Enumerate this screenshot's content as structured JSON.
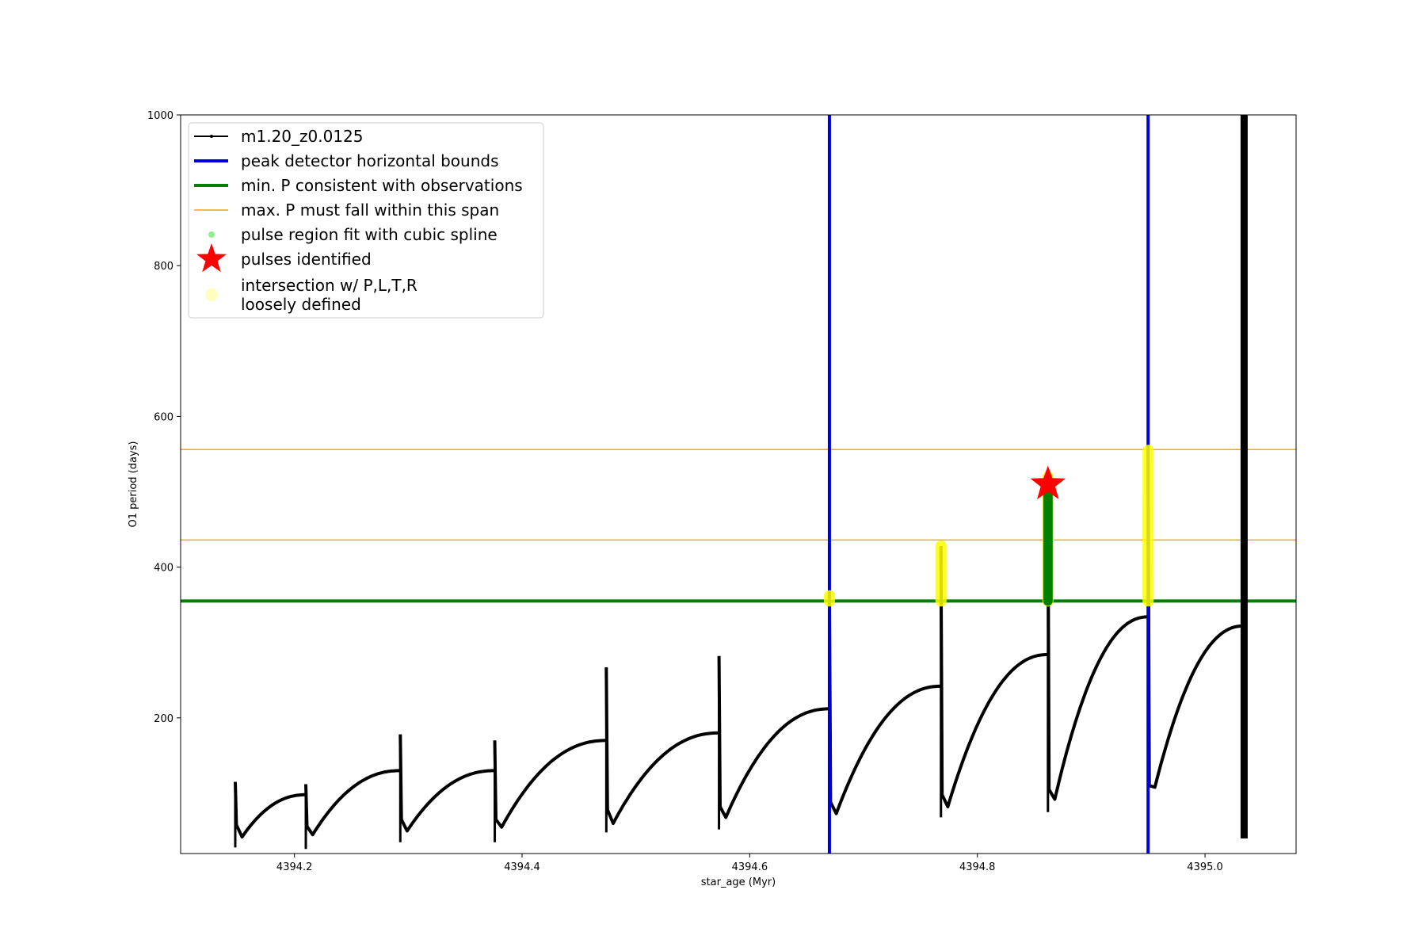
{
  "chart_data": {
    "type": "line",
    "xlabel": "star_age (Myr)",
    "ylabel": "O1 period (days)",
    "xlim": [
      4394.1,
      4395.08
    ],
    "ylim": [
      20,
      1000
    ],
    "x_ticks": [
      4394.2,
      4394.4,
      4394.6,
      4394.8,
      4395.0
    ],
    "x_tick_labels": [
      "4394.2",
      "4394.4",
      "4394.6",
      "4394.8",
      "4395.0"
    ],
    "y_ticks": [
      200,
      400,
      600,
      800,
      1000
    ],
    "y_tick_labels": [
      "200",
      "400",
      "600",
      "800",
      "1000"
    ],
    "grid": false,
    "legend_position": "upper-left",
    "legend": [
      {
        "label": "m1.20_z0.0125",
        "kind": "line-marker",
        "color": "#000000"
      },
      {
        "label": "peak detector horizontal bounds",
        "kind": "line-thick",
        "color": "#0000dd"
      },
      {
        "label": "min. P consistent with observations",
        "kind": "line-thick",
        "color": "#008000"
      },
      {
        "label": "max. P must fall within this span",
        "kind": "line-thin",
        "color": "#ffa500"
      },
      {
        "label": "pulse region fit with cubic spline",
        "kind": "dot",
        "color": "#90ee90"
      },
      {
        "label": "pulses identified",
        "kind": "star",
        "color": "#ff0000"
      },
      {
        "label": "intersection w/ P,L,T,R\nloosely defined",
        "kind": "big-dot",
        "color": "#ffffc0"
      }
    ],
    "vertical_lines": [
      {
        "name": "peak-detector-bound-left",
        "x": 4394.67,
        "color": "#0000dd"
      },
      {
        "name": "peak-detector-bound-right",
        "x": 4394.95,
        "color": "#0000dd"
      }
    ],
    "horizontal_lines": [
      {
        "name": "min-period-line",
        "y": 355,
        "color": "#008000",
        "width": 4
      },
      {
        "name": "max-period-lower-line",
        "y": 436,
        "color": "#ffa500",
        "width": 1.5
      },
      {
        "name": "max-period-upper-line",
        "y": 556,
        "color": "#ffa500",
        "width": 1.5
      }
    ],
    "series": [
      {
        "name": "m1.20_z0.0125",
        "color": "#000000",
        "pulses": [
          {
            "x0": 4394.148,
            "x1": 4394.21,
            "y_start": 42,
            "y_peak": 98,
            "spike_top": 115,
            "spike_bottom": 28
          },
          {
            "x0": 4394.21,
            "x1": 4394.293,
            "y_start": 45,
            "y_peak": 130,
            "spike_top": 112,
            "spike_bottom": 26
          },
          {
            "x0": 4394.293,
            "x1": 4394.376,
            "y_start": 50,
            "y_peak": 130,
            "spike_top": 178,
            "spike_bottom": 35
          },
          {
            "x0": 4394.376,
            "x1": 4394.474,
            "y_start": 55,
            "y_peak": 170,
            "spike_top": 170,
            "spike_bottom": 35
          },
          {
            "x0": 4394.474,
            "x1": 4394.573,
            "y_start": 60,
            "y_peak": 180,
            "spike_top": 267,
            "spike_bottom": 48
          },
          {
            "x0": 4394.573,
            "x1": 4394.67,
            "y_start": 68,
            "y_peak": 212,
            "spike_top": 282,
            "spike_bottom": 52
          },
          {
            "x0": 4394.67,
            "x1": 4394.768,
            "y_start": 73,
            "y_peak": 242,
            "spike_top": 362,
            "spike_bottom": 58
          },
          {
            "x0": 4394.768,
            "x1": 4394.862,
            "y_start": 82,
            "y_peak": 284,
            "spike_top": 428,
            "spike_bottom": 68
          },
          {
            "x0": 4394.862,
            "x1": 4394.95,
            "y_start": 92,
            "y_peak": 334,
            "spike_top": 498,
            "spike_bottom": 75
          },
          {
            "x0": 4394.95,
            "x1": 4395.034,
            "y_start": 108,
            "y_peak": 322,
            "spike_top": 555,
            "spike_bottom": 80
          }
        ],
        "final_spike": {
          "x": 4395.034,
          "y_bottom": 40,
          "y_top": 1000
        }
      }
    ],
    "intersection_regions": [
      {
        "x": 4394.67,
        "y_min": 355,
        "y_max": 362,
        "color": "#ffff00"
      },
      {
        "x": 4394.768,
        "y_min": 355,
        "y_max": 428,
        "color": "#ffff00"
      },
      {
        "x": 4394.862,
        "y_min": 355,
        "y_max": 520,
        "color": "#ffff00"
      },
      {
        "x": 4394.95,
        "y_min": 355,
        "y_max": 555,
        "color": "#ffff00"
      }
    ],
    "spline_fit_regions": [
      {
        "x": 4394.862,
        "y_min": 355,
        "y_max": 498,
        "color": "#008000"
      }
    ],
    "pulses_identified": [
      {
        "x": 4394.862,
        "y": 510,
        "color": "#ff0000"
      }
    ]
  }
}
